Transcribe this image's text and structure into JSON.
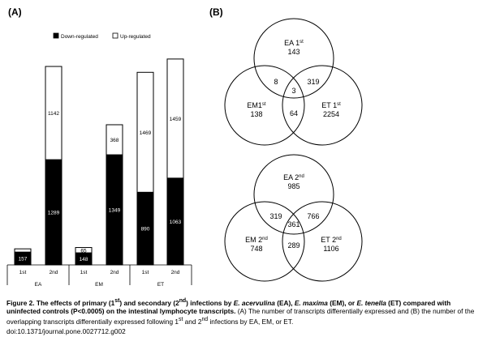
{
  "panel_a_label": "(A)",
  "panel_b_label": "(B)",
  "chart_data": [
    {
      "type": "bar",
      "stacked": true,
      "legend": [
        "Down-regulated",
        "Up-regulated"
      ],
      "legend_position": "top",
      "groups": [
        "EA",
        "EM",
        "ET"
      ],
      "categories": [
        "1st",
        "2nd",
        "1st",
        "2nd",
        "1st",
        "2nd"
      ],
      "series": [
        {
          "name": "Down-regulated",
          "color": "#000000",
          "values": [
            157,
            1289,
            148,
            1349,
            890,
            1063
          ]
        },
        {
          "name": "Up-regulated",
          "color": "#ffffff",
          "values": [
            null,
            1142,
            65,
            368,
            1469,
            1459
          ]
        }
      ],
      "ylim": [
        0,
        2600
      ],
      "grid": false
    },
    {
      "type": "venn",
      "title_parts": [
        "EA 1",
        "st"
      ],
      "sets": [
        {
          "label": "EA 1",
          "sup": "st",
          "only": "143"
        },
        {
          "label": "EM1",
          "sup": "st",
          "only": "138"
        },
        {
          "label": "ET 1",
          "sup": "st",
          "only": "2254"
        }
      ],
      "overlaps": {
        "ea_em": "8",
        "ea_et": "319",
        "em_et": "64",
        "all": "3"
      }
    },
    {
      "type": "venn",
      "sets": [
        {
          "label": "EA 2",
          "sup": "nd",
          "only": "985"
        },
        {
          "label": "EM 2",
          "sup": "nd",
          "only": "748"
        },
        {
          "label": "ET 2",
          "sup": "nd",
          "only": "1106"
        }
      ],
      "overlaps": {
        "ea_em": "319",
        "ea_et": "766",
        "em_et": "289",
        "all": "361"
      }
    }
  ],
  "caption": {
    "fig": "Figure 2.",
    "t1": " The effects of primary (1",
    "s1": "st",
    "t2": ") and secondary (2",
    "s2": "nd",
    "t3": ") infections by ",
    "ea": "E. acervulina",
    "t4": " (EA), ",
    "em": "E. maxima",
    "t5": " (EM), or ",
    "et": "E. tenella",
    "t6": " (ET) compared with uninfected controls (P<0.0005) on the intestinal lymphocyte transcripts.",
    "rest": " (A) The number of transcripts differentially expressed and (B) the number of the overlapping transcripts differentially expressed following 1",
    "rs1": "st",
    "rest2": " and 2",
    "rs2": "nd",
    "rest3": " infections by EA, EM, or ET."
  },
  "doi": "doi:10.1371/journal.pone.0027712.g002"
}
